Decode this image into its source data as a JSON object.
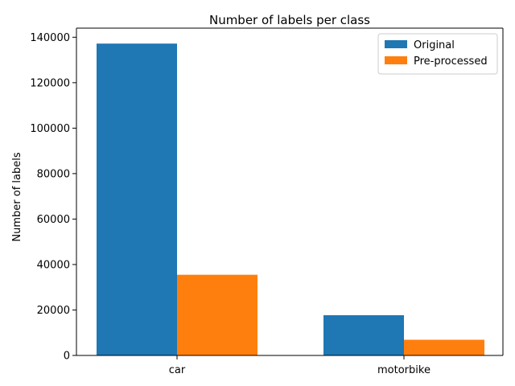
{
  "chart_data": {
    "type": "bar",
    "title": "Number of labels per class",
    "xlabel": "",
    "ylabel": "Number of labels",
    "categories": [
      "car",
      "motorbike"
    ],
    "series": [
      {
        "name": "Original",
        "values": [
          137200,
          17700
        ],
        "color": "#1f77b4"
      },
      {
        "name": "Pre-processed",
        "values": [
          35500,
          6900
        ],
        "color": "#ff7f0e"
      }
    ],
    "ylim": [
      0,
      144000
    ],
    "yticks": [
      0,
      20000,
      40000,
      60000,
      80000,
      100000,
      120000,
      140000
    ],
    "ytick_labels": [
      "0",
      "20000",
      "40000",
      "60000",
      "80000",
      "100000",
      "120000",
      "140000"
    ],
    "grid": false,
    "legend_position": "top-right"
  }
}
